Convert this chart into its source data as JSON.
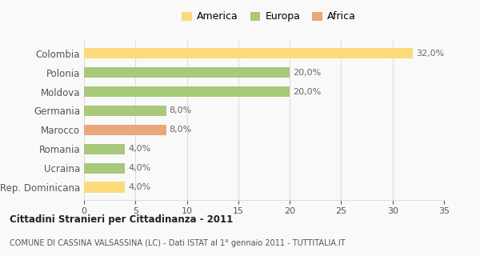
{
  "title1": "Cittadini Stranieri per Cittadinanza - 2011",
  "title2": "COMUNE DI CASSINA VALSASSINA (LC) - Dati ISTAT al 1° gennaio 2011 - TUTTITALIA.IT",
  "categories": [
    "Rep. Dominicana",
    "Ucraina",
    "Romania",
    "Marocco",
    "Germania",
    "Moldova",
    "Polonia",
    "Colombia"
  ],
  "values": [
    4.0,
    4.0,
    4.0,
    8.0,
    8.0,
    20.0,
    20.0,
    32.0
  ],
  "colors": [
    "#FADA7A",
    "#A8C87A",
    "#A8C87A",
    "#E8A87A",
    "#A8C87A",
    "#A8C87A",
    "#A8C87A",
    "#FADA7A"
  ],
  "legend_items": [
    {
      "label": "America",
      "color": "#FADA7A"
    },
    {
      "label": "Europa",
      "color": "#A8C87A"
    },
    {
      "label": "Africa",
      "color": "#E8A87A"
    }
  ],
  "xlim": [
    0,
    35
  ],
  "xticks": [
    0,
    5,
    10,
    15,
    20,
    25,
    30,
    35
  ],
  "bar_height": 0.55,
  "background_color": "#f9f9f9",
  "grid_color": "#dddddd",
  "label_color": "#555555",
  "value_color": "#666666"
}
